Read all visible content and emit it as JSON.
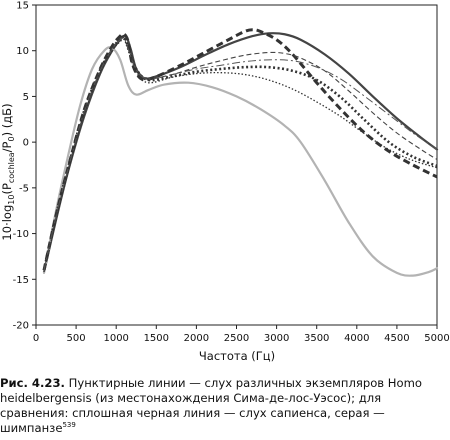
{
  "chart_data": {
    "type": "line",
    "xlabel": "Частота (Гц)",
    "ylabel": "10·log10(Pcochlea/P0) (дБ)",
    "xlim": [
      0,
      5000
    ],
    "ylim": [
      -20,
      15
    ],
    "xticks": [
      0,
      500,
      1000,
      1500,
      2000,
      2500,
      3000,
      3500,
      4000,
      4500,
      5000
    ],
    "yticks": [
      -20,
      -15,
      -10,
      -5,
      0,
      5,
      10,
      15
    ],
    "grid": false,
    "legend": "none",
    "series": [
      {
        "style": "solid",
        "color": "#444444",
        "width": 2.2,
        "x": [
          100,
          250,
          400,
          600,
          800,
          950,
          1050,
          1120,
          1180,
          1250,
          1350,
          1500,
          1800,
          2100,
          2400,
          2700,
          2900,
          3100,
          3300,
          3600,
          3900,
          4200,
          4500,
          4800,
          5000
        ],
        "y": [
          -14.2,
          -8.5,
          -3.2,
          2.8,
          7.5,
          10.0,
          11.2,
          11.6,
          10.2,
          8.0,
          7.0,
          7.2,
          8.2,
          9.5,
          10.7,
          11.6,
          11.9,
          11.8,
          11.2,
          9.6,
          7.5,
          5.0,
          2.6,
          0.5,
          -0.8
        ]
      },
      {
        "style": "solid",
        "color": "#b3b3b3",
        "width": 2.2,
        "x": [
          100,
          250,
          400,
          550,
          700,
          850,
          950,
          1050,
          1150,
          1250,
          1400,
          1600,
          1900,
          2200,
          2500,
          2800,
          3100,
          3300,
          3600,
          3900,
          4200,
          4500,
          4700,
          4900,
          5000
        ],
        "y": [
          -14.3,
          -7.5,
          -1.5,
          4.0,
          8.0,
          10.0,
          10.3,
          9.0,
          6.2,
          5.2,
          5.7,
          6.3,
          6.5,
          6.0,
          5.0,
          3.6,
          1.8,
          0.0,
          -4.2,
          -8.8,
          -12.5,
          -14.3,
          -14.6,
          -14.2,
          -13.8
        ]
      },
      {
        "style": "heavy-dashed",
        "color": "#333333",
        "width": 3.0,
        "dash": "7 4",
        "x": [
          100,
          250,
          400,
          600,
          800,
          950,
          1050,
          1100,
          1150,
          1200,
          1300,
          1450,
          1800,
          2100,
          2400,
          2600,
          2700,
          2800,
          3000,
          3200,
          3500,
          3800,
          4100,
          4400,
          4700,
          5000
        ],
        "y": [
          -14.0,
          -8.0,
          -2.8,
          3.5,
          8.0,
          10.5,
          11.6,
          11.8,
          11.0,
          8.6,
          7.0,
          7.0,
          8.4,
          9.8,
          11.2,
          12.1,
          12.3,
          12.1,
          11.2,
          9.6,
          6.5,
          3.6,
          1.0,
          -1.0,
          -2.5,
          -3.8
        ]
      },
      {
        "style": "thin-dashed",
        "color": "#444444",
        "width": 1.1,
        "dash": "5 3",
        "x": [
          100,
          250,
          400,
          600,
          800,
          950,
          1050,
          1100,
          1150,
          1250,
          1400,
          1700,
          2000,
          2300,
          2600,
          2900,
          3100,
          3300,
          3600,
          3900,
          4200,
          4500,
          4800,
          5000
        ],
        "y": [
          -14.0,
          -8.2,
          -3.0,
          3.2,
          7.8,
          10.3,
          11.2,
          11.4,
          10.3,
          8.0,
          7.0,
          7.4,
          8.2,
          8.9,
          9.5,
          9.8,
          9.7,
          9.2,
          7.8,
          5.6,
          3.2,
          1.0,
          -0.8,
          -1.9
        ]
      },
      {
        "style": "fine-dotted",
        "color": "#333333",
        "width": 1.3,
        "dash": "1.5 2",
        "x": [
          100,
          250,
          400,
          600,
          800,
          950,
          1050,
          1100,
          1150,
          1250,
          1400,
          1700,
          2000,
          2300,
          2600,
          2900,
          3200,
          3500,
          3800,
          4100,
          4400,
          4700,
          5000
        ],
        "y": [
          -14.2,
          -8.5,
          -3.3,
          3.0,
          7.6,
          10.0,
          11.0,
          11.2,
          10.0,
          7.6,
          6.5,
          7.1,
          7.5,
          7.6,
          7.4,
          6.8,
          5.8,
          4.4,
          2.8,
          0.9,
          -0.8,
          -2.0,
          -2.8
        ]
      },
      {
        "style": "heavy-dotted",
        "color": "#333333",
        "width": 2.6,
        "dash": "2 2.5",
        "x": [
          100,
          250,
          400,
          600,
          800,
          950,
          1050,
          1100,
          1150,
          1250,
          1400,
          1700,
          2000,
          2300,
          2600,
          2900,
          3200,
          3500,
          3800,
          4100,
          4400,
          4700,
          5000
        ],
        "y": [
          -14.0,
          -8.0,
          -2.8,
          3.4,
          7.9,
          10.2,
          11.3,
          11.5,
          10.4,
          8.0,
          6.8,
          7.2,
          7.7,
          8.0,
          8.2,
          8.2,
          7.8,
          6.8,
          4.9,
          2.4,
          0.0,
          -1.6,
          -2.6
        ]
      },
      {
        "style": "thin-dash-dot",
        "color": "#555555",
        "width": 1.0,
        "dash": "8 3 2 3",
        "x": [
          100,
          250,
          400,
          600,
          800,
          950,
          1050,
          1100,
          1150,
          1250,
          1400,
          1700,
          2000,
          2300,
          2600,
          2900,
          3200,
          3500,
          3800,
          4100,
          4400,
          4700,
          5000
        ],
        "y": [
          -14.0,
          -8.1,
          -2.9,
          3.3,
          7.8,
          10.2,
          11.2,
          11.3,
          10.2,
          7.9,
          6.9,
          7.4,
          8.0,
          8.4,
          8.8,
          9.0,
          8.9,
          8.2,
          6.9,
          5.0,
          3.0,
          1.0,
          -0.8
        ]
      }
    ]
  },
  "caption": {
    "figure_label": "Рис. 4.23.",
    "text": "Пунктирные линии — слух различных экземпляров Homo heidelbergensis (из местонахождения Сима-де-лос-Уэсос); для сравнения: сплошная черная линия — слух сапиенса, серая — шимпанзе",
    "footnote": "539"
  }
}
